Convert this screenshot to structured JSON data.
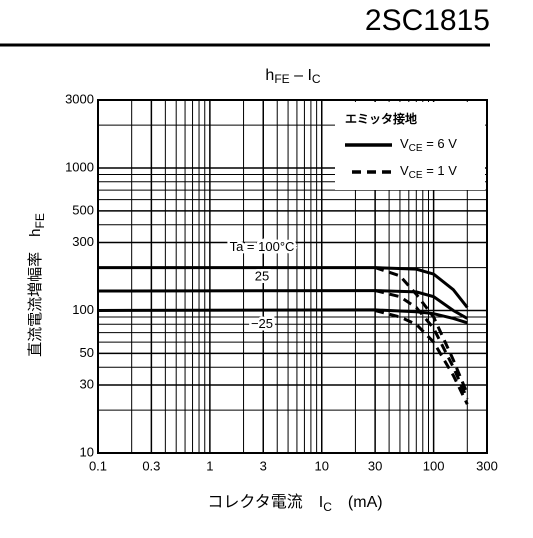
{
  "chart_data": {
    "type": "line",
    "header": "2SC1815",
    "title_parts": [
      "h",
      "FE",
      " – I",
      "C"
    ],
    "y_label_parts": [
      "直流電流増幅率　h",
      "FE"
    ],
    "x_label_parts": [
      "コレクタ電流　I",
      "C",
      "　(mA)"
    ],
    "legend_title": "エミッタ接地",
    "log_x": true,
    "log_y": true,
    "grid": true,
    "xlim": [
      0.1,
      300
    ],
    "ylim": [
      10,
      3000
    ],
    "xticks": [
      0.1,
      0.3,
      1,
      3,
      10,
      30,
      100,
      300
    ],
    "yticks": [
      10,
      30,
      50,
      100,
      300,
      500,
      1000,
      3000
    ],
    "xgrid": [
      0.2,
      0.4,
      0.5,
      0.6,
      0.7,
      0.8,
      0.9,
      2,
      4,
      5,
      6,
      7,
      8,
      9,
      20,
      40,
      50,
      60,
      70,
      80,
      90,
      200
    ],
    "ygrid": [
      20,
      40,
      60,
      70,
      80,
      90,
      200,
      400,
      600,
      700,
      800,
      900,
      2000
    ],
    "groups": [
      {
        "name_parts": [
          "V",
          "CE",
          " = 6 V"
        ],
        "dashed": false,
        "color": "#000000",
        "curves": [
          {
            "label": "Ta = 100°C",
            "x": [
              0.1,
              30,
              70,
              100,
              150,
              200
            ],
            "values": [
              200,
              200,
              195,
              180,
              140,
              105
            ]
          },
          {
            "label": "25",
            "x": [
              0.1,
              30,
              70,
              100,
              150,
              200
            ],
            "values": [
              137,
              138,
              135,
              125,
              100,
              88
            ]
          },
          {
            "label": "−25",
            "x": [
              0.1,
              30,
              70,
              100,
              150,
              200
            ],
            "values": [
              100,
              101,
              98,
              95,
              88,
              82
            ]
          }
        ]
      },
      {
        "name_parts": [
          "V",
          "CE",
          " = 1 V"
        ],
        "dashed": true,
        "color": "#000000",
        "curves": [
          {
            "x": [
              30,
              50,
              70,
              100,
              150,
              200
            ],
            "values": [
              200,
              175,
              130,
              90,
              45,
              26
            ]
          },
          {
            "x": [
              30,
              50,
              70,
              100,
              150,
              200
            ],
            "values": [
              138,
              125,
              105,
              75,
              40,
              24
            ]
          },
          {
            "x": [
              30,
              50,
              70,
              100,
              150,
              200
            ],
            "values": [
              100,
              90,
              80,
              60,
              35,
              22
            ]
          }
        ]
      }
    ]
  }
}
